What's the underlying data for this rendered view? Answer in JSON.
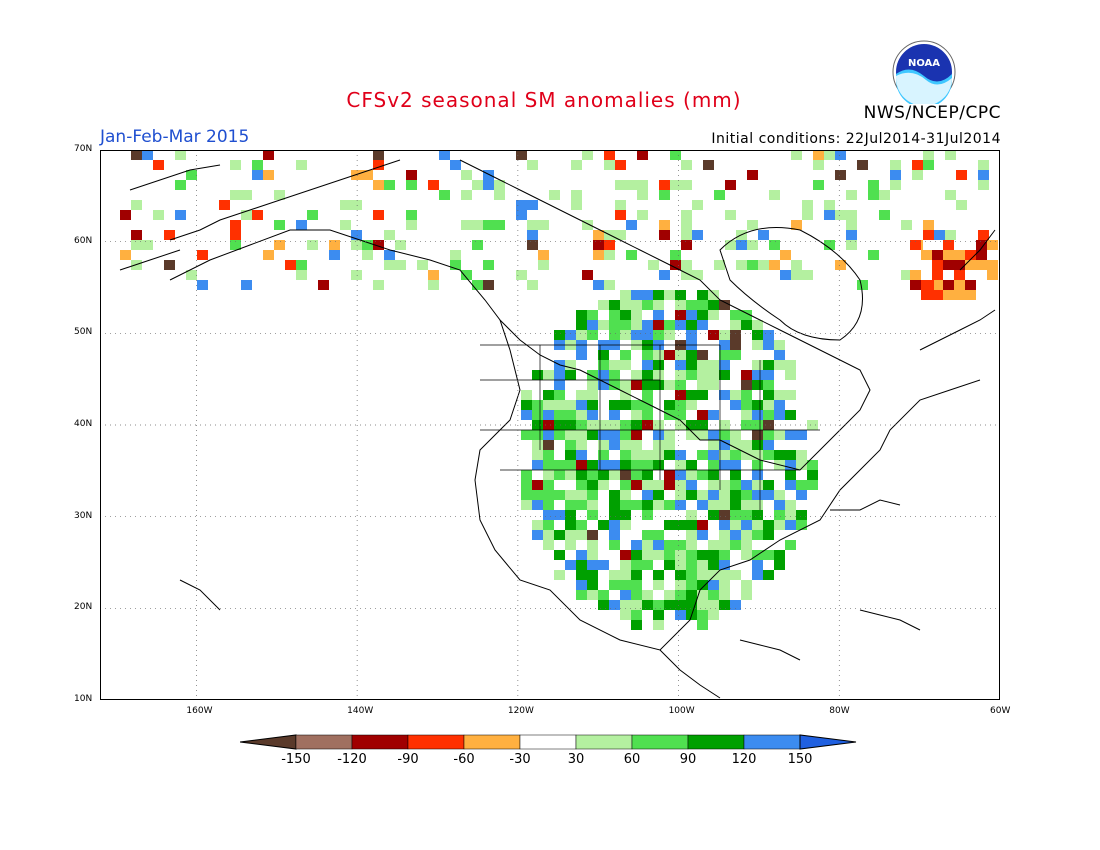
{
  "title": "CFSv2 seasonal SM anomalies (mm)",
  "period": "Jan-Feb-Mar 2015",
  "initial_conditions": "Initial conditions: 22Jul2014-31Jul2014",
  "agency": "NWS/NCEP/CPC",
  "logo_text": "NOAA",
  "map": {
    "region": "North America",
    "lon_range": [
      -172,
      -60
    ],
    "lat_range": [
      10,
      70
    ],
    "lat_ticks": [
      "10N",
      "20N",
      "30N",
      "40N",
      "50N",
      "60N",
      "70N"
    ],
    "lon_ticks": [
      "160W",
      "140W",
      "120W",
      "100W",
      "80W",
      "60W"
    ],
    "gridlines": "dotted"
  },
  "legend": {
    "labels": [
      "-150",
      "-120",
      "-90",
      "-60",
      "-30",
      "30",
      "60",
      "90",
      "120",
      "150"
    ],
    "colors": [
      "#5a3a2a",
      "#a07060",
      "#a00000",
      "#ff3000",
      "#ffb040",
      "#ffffff",
      "#b4f0a0",
      "#50e050",
      "#00a000",
      "#3c8cf0",
      "#2060e0"
    ]
  },
  "colors": {
    "title": "#e0001a",
    "period": "#1f4fd0"
  }
}
